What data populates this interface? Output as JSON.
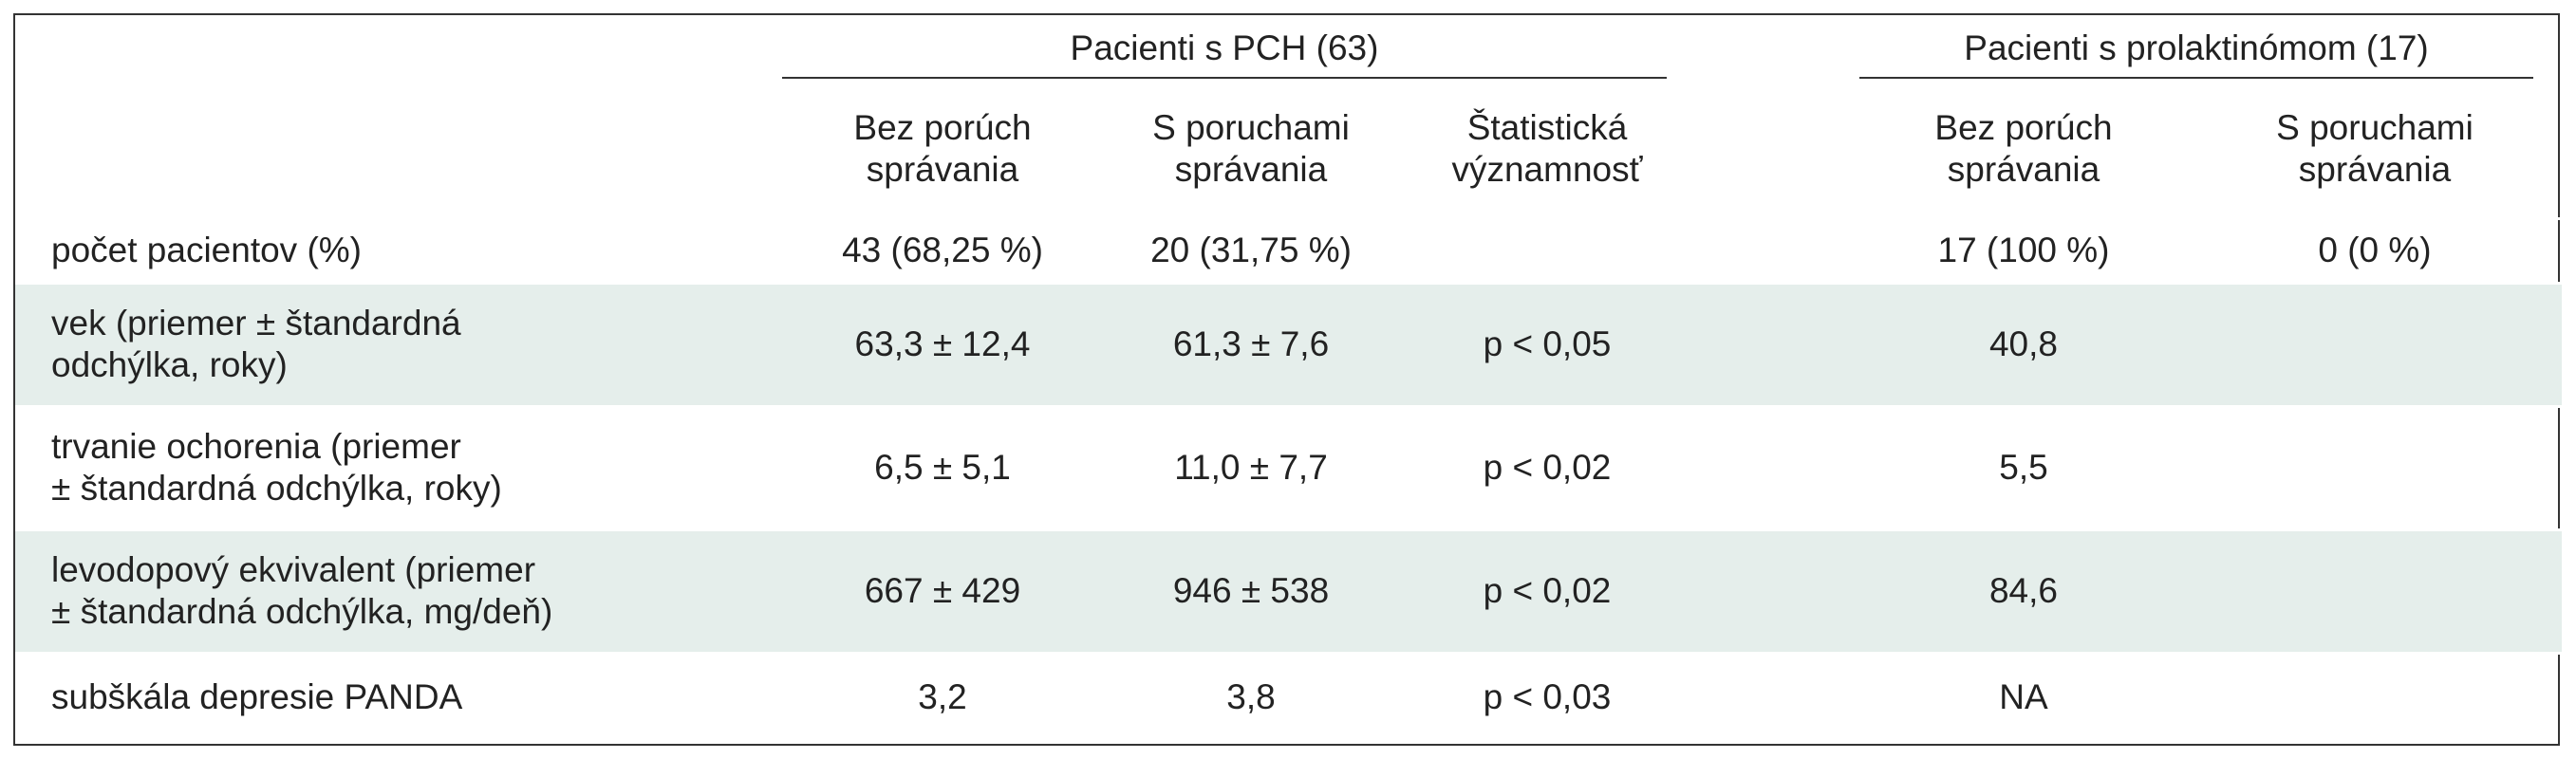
{
  "table": {
    "groups": [
      "Pacienti s PCH (63)",
      "Pacienti s prolaktinómom (17)"
    ],
    "columns": [
      [
        "Bez porúch",
        "správania"
      ],
      [
        "S poruchami",
        "správania"
      ],
      [
        "Štatistická",
        "významnosť"
      ],
      [
        "Bez porúch",
        "správania"
      ],
      [
        "S poruchami",
        "správania"
      ]
    ],
    "rows": [
      {
        "label": [
          "počet pacientov (%)"
        ],
        "cells": [
          "43 (68,25 %)",
          "20 (31,75 %)",
          null,
          "17 (100 %)",
          "0 (0 %)"
        ]
      },
      {
        "label": [
          "vek (priemer ± štandardná",
          "odchýlka, roky)"
        ],
        "cells": [
          "63,3 ± 12,4",
          "61,3 ± 7,6",
          "p < 0,05",
          "40,8",
          null
        ]
      },
      {
        "label": [
          "trvanie ochorenia (priemer",
          "± štandardná odchýlka, roky)"
        ],
        "cells": [
          "6,5 ± 5,1",
          "11,0 ± 7,7",
          "p < 0,02",
          "5,5",
          null
        ]
      },
      {
        "label": [
          "levodopový ekvivalent (priemer",
          "± štandardná odchýlka, mg/deň)"
        ],
        "cells": [
          "667 ± 429",
          "946 ± 538",
          "p < 0,02",
          "84,6",
          null
        ]
      },
      {
        "label": [
          "subškála depresie PANDA"
        ],
        "cells": [
          "3,2",
          "3,8",
          "p < 0,03",
          "NA",
          null
        ]
      }
    ]
  }
}
